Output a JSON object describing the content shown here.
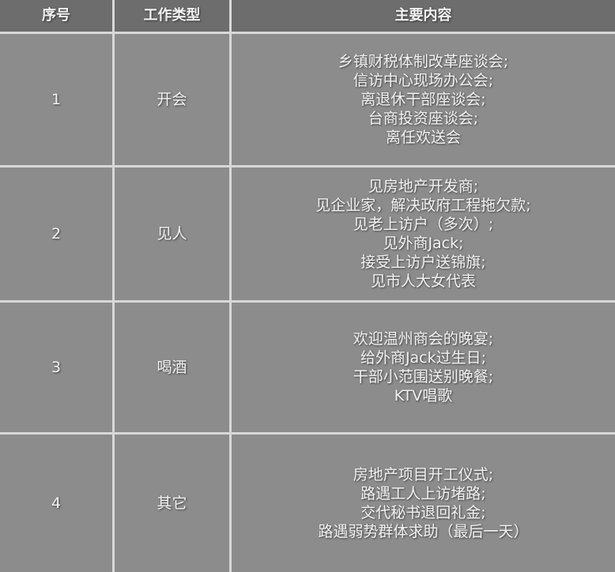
{
  "header": {
    "col1": "序号",
    "col2": "工作类型",
    "col3": "主要内容"
  },
  "rows": [
    {
      "no": "1",
      "type": "开会",
      "items": [
        "乡镇财税体制改革座谈会;",
        "信访中心现场办公会;",
        "离退休干部座谈会;",
        "台商投资座谈会;",
        "离任欢送会"
      ]
    },
    {
      "no": "2",
      "type": "见人",
      "items": [
        "见房地产开发商;",
        "见企业家，解决政府工程拖欠款;",
        "见老上访户（多次）;",
        "见外商Jack;",
        "接受上访户送锦旗;",
        "见市人大女代表"
      ]
    },
    {
      "no": "3",
      "type": "喝酒",
      "items": [
        "欢迎温州商会的晚宴;",
        "给外商Jack过生日;",
        "干部小范围送别晚餐;",
        "KTV唱歌"
      ]
    },
    {
      "no": "4",
      "type": "其它",
      "items": [
        "房地产项目开工仪式;",
        "路遇工人上访堵路;",
        "交代秘书退回礼金;",
        "路遇弱势群体求助（最后一天）"
      ]
    }
  ]
}
